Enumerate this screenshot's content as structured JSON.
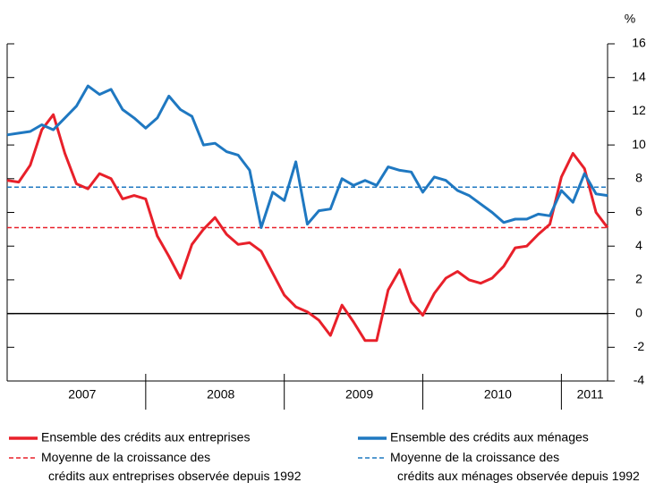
{
  "chart_data": {
    "type": "line",
    "unit": "%",
    "categories": [
      null,
      null,
      null,
      null,
      null,
      null,
      "2007",
      null,
      null,
      null,
      null,
      null,
      null,
      null,
      null,
      null,
      null,
      null,
      "2008",
      null,
      null,
      null,
      null,
      null,
      null,
      null,
      null,
      null,
      null,
      null,
      "2009",
      null,
      null,
      null,
      null,
      null,
      null,
      null,
      null,
      null,
      null,
      null,
      "2010",
      null,
      null,
      null,
      null,
      null,
      null,
      null,
      "2011",
      null,
      null
    ],
    "series": [
      {
        "name": "Ensemble des crédits aux entreprises",
        "color": "#e8202a",
        "values": [
          7.9,
          7.8,
          8.8,
          10.9,
          11.8,
          9.5,
          7.7,
          7.4,
          8.3,
          8.0,
          6.8,
          7.0,
          6.8,
          4.6,
          3.4,
          2.1,
          4.1,
          5.0,
          5.7,
          4.7,
          4.1,
          4.2,
          3.7,
          2.4,
          1.1,
          0.4,
          0.1,
          -0.4,
          -1.3,
          0.5,
          -0.5,
          -1.6,
          -1.6,
          1.4,
          2.6,
          0.7,
          -0.1,
          1.2,
          2.1,
          2.5,
          2.0,
          1.8,
          2.1,
          2.8,
          3.9,
          4.0,
          4.7,
          5.3,
          8.1,
          9.5,
          8.6,
          6.0,
          5.1
        ]
      },
      {
        "name": "Ensemble des crédits aux ménages",
        "color": "#1f78c1",
        "values": [
          10.6,
          10.7,
          10.8,
          11.2,
          10.9,
          11.6,
          12.3,
          13.5,
          13.0,
          13.3,
          12.1,
          11.6,
          11.0,
          11.6,
          12.9,
          12.1,
          11.7,
          10.0,
          10.1,
          9.6,
          9.4,
          8.5,
          5.1,
          7.2,
          6.7,
          9.0,
          5.3,
          6.1,
          6.2,
          8.0,
          7.6,
          7.9,
          7.6,
          8.7,
          8.5,
          8.4,
          7.2,
          8.1,
          7.9,
          7.3,
          7.0,
          6.5,
          6.0,
          5.4,
          5.6,
          5.6,
          5.9,
          5.8,
          7.3,
          6.6,
          8.3,
          7.1,
          7.0
        ]
      }
    ],
    "reference_lines": [
      {
        "name": "Moyenne de la croissance des crédits aux entreprises observée depuis 1992",
        "value": 5.1,
        "color": "#e8202a"
      },
      {
        "name": "Moyenne de la croissance des crédits aux ménages observée depuis 1992",
        "value": 7.5,
        "color": "#1f78c1"
      }
    ],
    "ylim": [
      -4,
      16
    ],
    "yticks": [
      -4,
      -2,
      0,
      2,
      4,
      6,
      8,
      10,
      12,
      14,
      16
    ]
  }
}
